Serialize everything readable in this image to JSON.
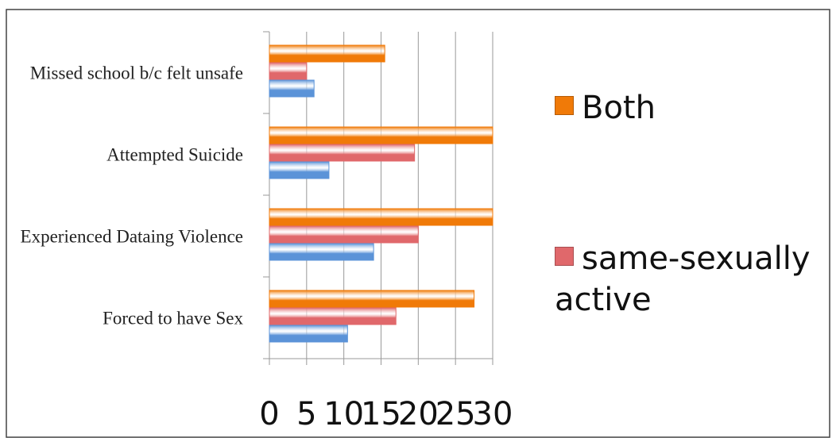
{
  "chart_data": {
    "type": "bar",
    "orientation": "horizontal",
    "categories": [
      "Forced to have Sex",
      "Experienced Dataing Violence",
      "Attempted Suicide",
      "Missed school b/c felt unsafe"
    ],
    "series": [
      {
        "color": "#5b93d8",
        "values": [
          10.5,
          14,
          8,
          6
        ]
      },
      {
        "name": "same-sexually active",
        "color": "#e0686b",
        "values": [
          17,
          20,
          19.5,
          5
        ]
      },
      {
        "name": "Both",
        "color": "#f07a08",
        "values": [
          27.5,
          30,
          30,
          15.5
        ]
      }
    ],
    "xlim": [
      0,
      30
    ],
    "xticks": [
      0,
      5,
      10,
      15,
      20,
      25,
      30
    ],
    "grid": true
  }
}
